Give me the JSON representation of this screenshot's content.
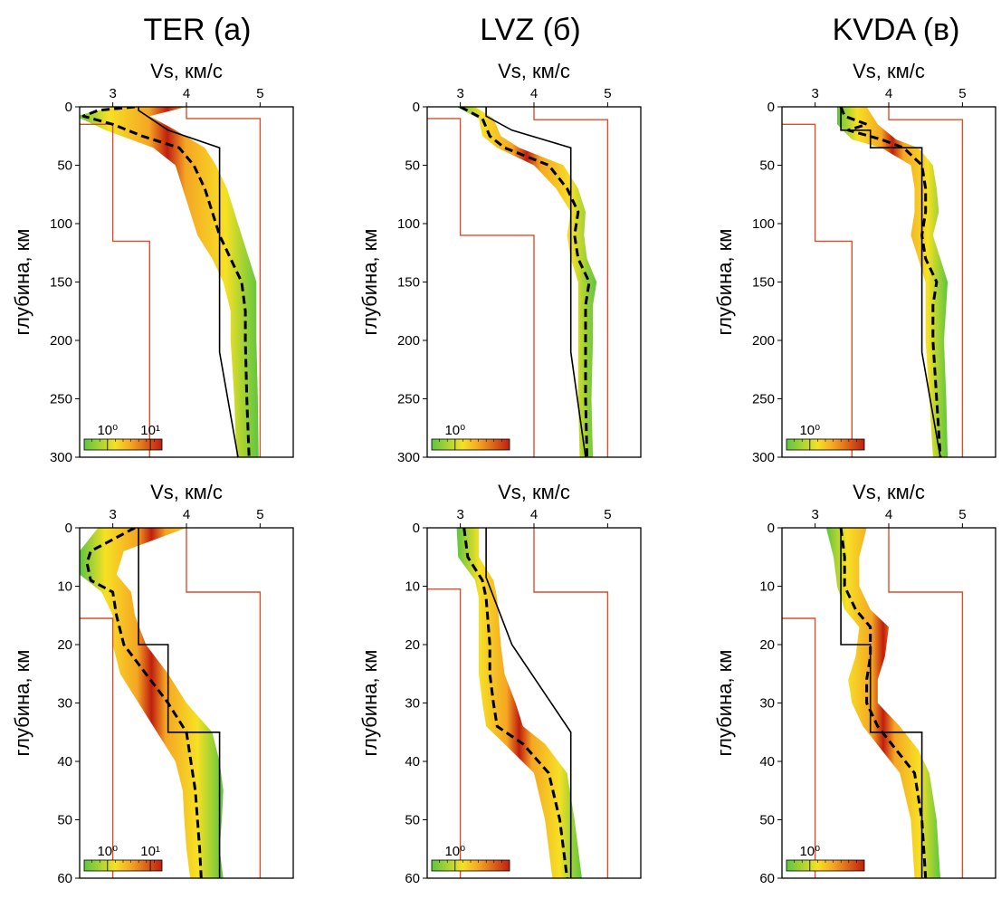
{
  "columns": [
    {
      "title": "TER (а)"
    },
    {
      "title": "LVZ (б)"
    },
    {
      "title": "KVDA (в)"
    }
  ],
  "axis": {
    "xlabel": "Vs, км/с",
    "ylabel": "глубина, км"
  },
  "colors": {
    "posterior_low": "#5cc640",
    "posterior_mid": "#f6e024",
    "posterior_high": "#c01e0e",
    "mean": "#000000",
    "reference": "#000000",
    "prior_bounds": "#d94f2b"
  },
  "chart_data": [
    {
      "id": "ter-deep",
      "row": 0,
      "col": 0,
      "type": "area",
      "xlim": [
        2.55,
        5.45
      ],
      "ylim": [
        300,
        0
      ],
      "xticks": [
        3,
        4,
        5
      ],
      "yticks": [
        0,
        50,
        100,
        150,
        200,
        250,
        300
      ],
      "colorbar_labels": [
        "10⁰",
        "10¹"
      ],
      "reference_model": {
        "depth": [
          0,
          3,
          3,
          20,
          20,
          35,
          35,
          210,
          300
        ],
        "vs": [
          3.35,
          3.35,
          3.35,
          3.75,
          3.75,
          4.45,
          4.45,
          4.45,
          4.7
        ]
      },
      "mean_model": {
        "depth": [
          0,
          3,
          8,
          15,
          25,
          35,
          50,
          70,
          90,
          110,
          130,
          150,
          175,
          200,
          250,
          300
        ],
        "vs": [
          3.3,
          2.8,
          2.6,
          3.0,
          3.4,
          3.9,
          4.1,
          4.25,
          4.35,
          4.45,
          4.6,
          4.75,
          4.8,
          4.8,
          4.82,
          4.85
        ]
      },
      "posterior_band": {
        "depth": [
          0,
          8,
          20,
          35,
          50,
          70,
          90,
          110,
          130,
          150,
          175,
          200,
          250,
          300
        ],
        "vs_min": [
          3.0,
          2.5,
          2.9,
          3.55,
          3.85,
          3.95,
          4.05,
          4.15,
          4.35,
          4.5,
          4.6,
          4.6,
          4.65,
          4.68
        ],
        "vs_max": [
          4.0,
          3.5,
          3.85,
          4.25,
          4.4,
          4.55,
          4.65,
          4.75,
          4.85,
          4.95,
          4.95,
          4.95,
          4.97,
          4.98
        ]
      },
      "prior_bounds": [
        {
          "depth": [
            15,
            15,
            115,
            115,
            300
          ],
          "vs": [
            2.55,
            3.0,
            3.0,
            3.5,
            3.5
          ]
        },
        {
          "depth": [
            0,
            10,
            10,
            300
          ],
          "vs": [
            4.0,
            4.0,
            5.0,
            5.0
          ]
        }
      ]
    },
    {
      "id": "lvz-deep",
      "row": 0,
      "col": 1,
      "type": "area",
      "xlim": [
        2.55,
        5.45
      ],
      "ylim": [
        300,
        0
      ],
      "xticks": [
        3,
        4,
        5
      ],
      "yticks": [
        0,
        50,
        100,
        150,
        200,
        250,
        300
      ],
      "colorbar_labels": [
        "10⁰"
      ],
      "reference_model": {
        "depth": [
          0,
          8,
          8,
          20,
          20,
          35,
          35,
          210,
          300
        ],
        "vs": [
          3.35,
          3.35,
          3.35,
          3.7,
          3.7,
          4.5,
          4.5,
          4.5,
          4.7
        ]
      },
      "mean_model": {
        "depth": [
          0,
          10,
          25,
          35,
          50,
          70,
          90,
          110,
          130,
          150,
          170,
          200,
          250,
          300
        ],
        "vs": [
          3.0,
          3.3,
          3.4,
          3.6,
          4.2,
          4.45,
          4.6,
          4.55,
          4.6,
          4.75,
          4.7,
          4.7,
          4.7,
          4.72
        ]
      },
      "posterior_band": {
        "depth": [
          0,
          10,
          25,
          35,
          50,
          70,
          90,
          110,
          130,
          150,
          170,
          200,
          250,
          300
        ],
        "vs_min": [
          2.95,
          3.25,
          3.3,
          3.5,
          4.0,
          4.3,
          4.5,
          4.45,
          4.5,
          4.6,
          4.6,
          4.6,
          4.6,
          4.62
        ],
        "vs_max": [
          3.2,
          3.45,
          3.55,
          3.8,
          4.4,
          4.6,
          4.7,
          4.68,
          4.72,
          4.85,
          4.8,
          4.8,
          4.78,
          4.8
        ]
      },
      "prior_bounds": [
        {
          "depth": [
            10,
            10,
            110,
            110,
            300
          ],
          "vs": [
            2.55,
            3.0,
            3.0,
            4.0,
            4.0
          ]
        },
        {
          "depth": [
            0,
            11,
            11,
            300
          ],
          "vs": [
            4.0,
            4.0,
            5.0,
            5.0
          ]
        }
      ]
    },
    {
      "id": "kvda-deep",
      "row": 0,
      "col": 2,
      "type": "area",
      "xlim": [
        2.55,
        5.45
      ],
      "ylim": [
        300,
        0
      ],
      "xticks": [
        3,
        4,
        5
      ],
      "yticks": [
        0,
        50,
        100,
        150,
        200,
        250,
        300
      ],
      "colorbar_labels": [
        "10⁰"
      ],
      "reference_model": {
        "depth": [
          0,
          20,
          20,
          35,
          35,
          210,
          300
        ],
        "vs": [
          3.35,
          3.35,
          3.75,
          3.75,
          4.45,
          4.45,
          4.7
        ]
      },
      "mean_model": {
        "depth": [
          0,
          8,
          15,
          20,
          28,
          35,
          50,
          70,
          90,
          110,
          130,
          150,
          170,
          200,
          250,
          300
        ],
        "vs": [
          3.35,
          3.4,
          3.7,
          3.45,
          3.9,
          4.2,
          4.45,
          4.5,
          4.5,
          4.45,
          4.5,
          4.65,
          4.6,
          4.6,
          4.65,
          4.7
        ]
      },
      "posterior_band": {
        "depth": [
          0,
          15,
          28,
          35,
          50,
          70,
          90,
          110,
          130,
          150,
          170,
          200,
          250,
          300
        ],
        "vs_min": [
          3.3,
          3.3,
          3.5,
          3.9,
          4.3,
          4.35,
          4.35,
          4.3,
          4.4,
          4.5,
          4.5,
          4.5,
          4.55,
          4.6
        ],
        "vs_max": [
          3.7,
          3.85,
          4.1,
          4.4,
          4.6,
          4.65,
          4.68,
          4.6,
          4.7,
          4.8,
          4.78,
          4.75,
          4.78,
          4.8
        ]
      },
      "prior_bounds": [
        {
          "depth": [
            15,
            15,
            115,
            115,
            300
          ],
          "vs": [
            2.55,
            3.0,
            3.0,
            3.5,
            3.5
          ]
        },
        {
          "depth": [
            0,
            11,
            11,
            300
          ],
          "vs": [
            4.0,
            4.0,
            5.0,
            5.0
          ]
        }
      ]
    },
    {
      "id": "ter-shallow",
      "row": 1,
      "col": 0,
      "type": "area",
      "xlim": [
        2.55,
        5.45
      ],
      "ylim": [
        60,
        0
      ],
      "xticks": [
        3,
        4,
        5
      ],
      "yticks": [
        0,
        10,
        20,
        30,
        40,
        50,
        60
      ],
      "colorbar_labels": [
        "10⁰",
        "10¹"
      ],
      "reference_model": {
        "depth": [
          0,
          20,
          20,
          35,
          35,
          60
        ],
        "vs": [
          3.35,
          3.35,
          3.75,
          3.75,
          4.45,
          4.45
        ]
      },
      "mean_model": {
        "depth": [
          0,
          2,
          4,
          6,
          9,
          11,
          15,
          20,
          25,
          30,
          35,
          45,
          55,
          60
        ],
        "vs": [
          3.3,
          3.0,
          2.7,
          2.65,
          2.7,
          3.0,
          3.05,
          3.15,
          3.45,
          3.75,
          4.0,
          4.12,
          4.18,
          4.2
        ]
      },
      "posterior_band": {
        "depth": [
          0,
          4,
          8,
          11,
          15,
          20,
          25,
          30,
          35,
          40,
          45,
          50,
          55,
          60
        ],
        "vs_min": [
          2.8,
          2.55,
          2.55,
          2.85,
          3.0,
          3.0,
          3.1,
          3.35,
          3.6,
          3.85,
          3.95,
          3.97,
          4.0,
          4.05
        ],
        "vs_max": [
          4.0,
          3.15,
          3.05,
          3.25,
          3.3,
          3.45,
          3.75,
          4.0,
          4.35,
          4.45,
          4.5,
          4.48,
          4.45,
          4.5
        ]
      },
      "prior_bounds": [
        {
          "depth": [
            15.5,
            15.5,
            60
          ],
          "vs": [
            2.55,
            3.0,
            3.0
          ]
        },
        {
          "depth": [
            0,
            11,
            11,
            60
          ],
          "vs": [
            4.0,
            4.0,
            5.0,
            5.0
          ]
        }
      ]
    },
    {
      "id": "lvz-shallow",
      "row": 1,
      "col": 1,
      "type": "area",
      "xlim": [
        2.55,
        5.45
      ],
      "ylim": [
        60,
        0
      ],
      "xticks": [
        3,
        4,
        5
      ],
      "yticks": [
        0,
        10,
        20,
        30,
        40,
        50,
        60
      ],
      "colorbar_labels": [
        "10⁰"
      ],
      "reference_model": {
        "depth": [
          0,
          8.5,
          8.5,
          20,
          20,
          35,
          35,
          60
        ],
        "vs": [
          3.35,
          3.35,
          3.35,
          3.7,
          3.7,
          4.5,
          4.5,
          4.5
        ]
      },
      "mean_model": {
        "depth": [
          0,
          5,
          9,
          12,
          20,
          25,
          30,
          34,
          37,
          42,
          50,
          60
        ],
        "vs": [
          3.05,
          3.1,
          3.3,
          3.35,
          3.4,
          3.4,
          3.45,
          3.5,
          3.85,
          4.2,
          4.35,
          4.45
        ]
      },
      "posterior_band": {
        "depth": [
          0,
          5,
          9,
          12,
          20,
          25,
          30,
          34,
          37,
          42,
          50,
          60
        ],
        "vs_min": [
          2.95,
          2.97,
          3.2,
          3.25,
          3.25,
          3.25,
          3.3,
          3.35,
          3.6,
          4.0,
          4.15,
          4.25
        ],
        "vs_max": [
          3.25,
          3.25,
          3.45,
          3.5,
          3.55,
          3.6,
          3.75,
          3.85,
          4.15,
          4.45,
          4.55,
          4.65
        ]
      },
      "prior_bounds": [
        {
          "depth": [
            10.5,
            10.5,
            60
          ],
          "vs": [
            2.55,
            3.0,
            3.0
          ]
        },
        {
          "depth": [
            0,
            11,
            11,
            60
          ],
          "vs": [
            4.0,
            4.0,
            5.0,
            5.0
          ]
        }
      ]
    },
    {
      "id": "kvda-shallow",
      "row": 1,
      "col": 2,
      "type": "area",
      "xlim": [
        2.55,
        5.45
      ],
      "ylim": [
        60,
        0
      ],
      "xticks": [
        3,
        4,
        5
      ],
      "yticks": [
        0,
        10,
        20,
        30,
        40,
        50,
        60
      ],
      "colorbar_labels": [
        "10⁰"
      ],
      "reference_model": {
        "depth": [
          0,
          20,
          20,
          35,
          35,
          60
        ],
        "vs": [
          3.35,
          3.35,
          3.75,
          3.75,
          4.45,
          4.45
        ]
      },
      "mean_model": {
        "depth": [
          0,
          5,
          10,
          14,
          17,
          22,
          26,
          30,
          34,
          38,
          42,
          50,
          60
        ],
        "vs": [
          3.35,
          3.4,
          3.4,
          3.55,
          3.75,
          3.75,
          3.7,
          3.7,
          3.85,
          4.1,
          4.35,
          4.45,
          4.5
        ]
      },
      "posterior_band": {
        "depth": [
          0,
          5,
          10,
          14,
          17,
          22,
          26,
          30,
          34,
          38,
          42,
          50,
          60
        ],
        "vs_min": [
          3.15,
          3.25,
          3.3,
          3.4,
          3.6,
          3.55,
          3.45,
          3.5,
          3.65,
          3.9,
          4.15,
          4.3,
          4.35
        ],
        "vs_max": [
          3.7,
          3.6,
          3.6,
          3.75,
          4.0,
          3.95,
          3.85,
          3.85,
          4.15,
          4.4,
          4.55,
          4.65,
          4.7
        ]
      },
      "prior_bounds": [
        {
          "depth": [
            15.5,
            15.5,
            60
          ],
          "vs": [
            2.55,
            3.0,
            3.0
          ]
        },
        {
          "depth": [
            0,
            11,
            11,
            60
          ],
          "vs": [
            4.0,
            4.0,
            5.0,
            5.0
          ]
        }
      ]
    }
  ]
}
